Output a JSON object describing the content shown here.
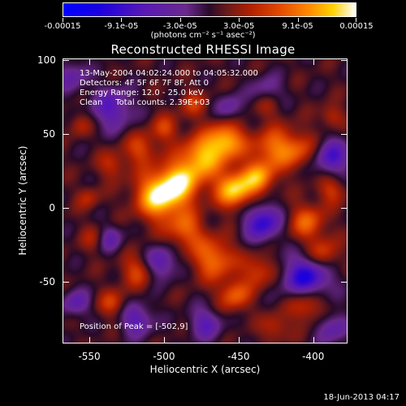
{
  "colorbar": {
    "labels": [
      "-0.00015",
      "-9.1e-05",
      "-3.0e-05",
      "3.0e-05",
      "9.1e-05",
      "0.00015"
    ],
    "units": "(photons cm⁻² s⁻¹ asec⁻²)"
  },
  "title": "Reconstructed RHESSI Image",
  "info": {
    "time": "13-May-2004 04:02:24.000 to 04:05:32.000",
    "detectors": "Detectors: 4F 5F 6F 7F 8F, Att 0",
    "energy": "Energy Range: 12.0 - 25.0 keV",
    "clean": "Clean     Total counts: 2.39E+03",
    "peak": "Position of Peak = [-502,9]"
  },
  "footer": "18-Jun-2013 04:17",
  "chart_data": {
    "type": "heatmap",
    "title": "Reconstructed RHESSI Image",
    "xlabel": "Heliocentric X (arcsec)",
    "ylabel": "Heliocentric Y (arcsec)",
    "xlim": [
      -568,
      -377
    ],
    "ylim": [
      -92,
      101
    ],
    "x_ticks": [
      -550,
      -500,
      -450,
      -400
    ],
    "y_ticks": [
      100,
      50,
      0,
      -50
    ],
    "colorbar_range": [
      -0.00015,
      0.00015
    ],
    "colormap": [
      "#0000ff",
      "#6a2a8c",
      "#2a0a2a",
      "#b02000",
      "#ff8a00",
      "#ffd000",
      "#ffffff"
    ],
    "peak": [
      -502,
      9
    ]
  }
}
